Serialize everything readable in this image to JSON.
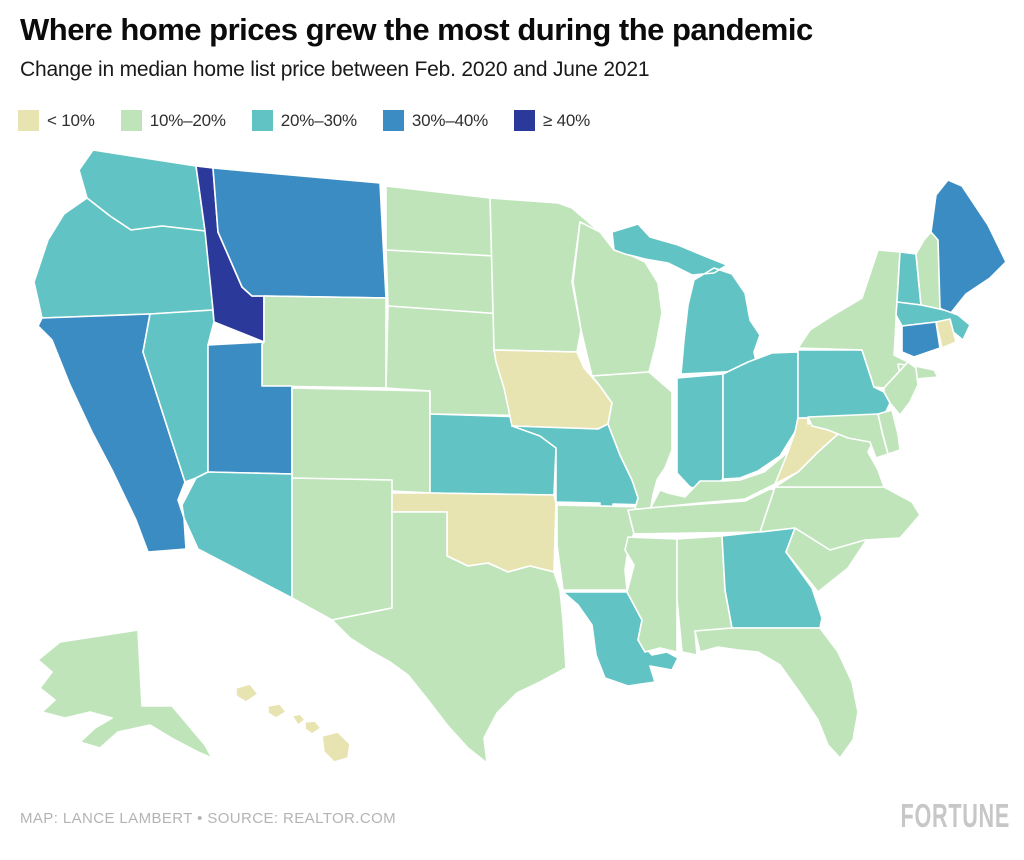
{
  "header": {
    "title": "Where home prices grew the most during the pandemic",
    "subtitle": "Change in median home list price between Feb. 2020 and June 2021"
  },
  "legend": {
    "items": [
      {
        "label": "< 10%",
        "key": "lt10"
      },
      {
        "label": "10%–20%",
        "key": "p10_20"
      },
      {
        "label": "20%–30%",
        "key": "p20_30"
      },
      {
        "label": "30%–40%",
        "key": "p30_40"
      },
      {
        "label": "≥ 40%",
        "key": "gte40"
      }
    ]
  },
  "map": {
    "type": "choropleth",
    "metric": "Change in median home list price, Feb. 2020 to June 2021",
    "palette": {
      "lt10": "#e8e4b1",
      "p10_20": "#bfe4ba",
      "p20_30": "#61c3c3",
      "p30_40": "#3a8cc3",
      "gte40": "#2b3a9a"
    },
    "border_color": "#ffffff",
    "states": [
      {
        "id": "WA",
        "name": "Washington",
        "category": "p20_30"
      },
      {
        "id": "OR",
        "name": "Oregon",
        "category": "p20_30"
      },
      {
        "id": "CA",
        "name": "California",
        "category": "p30_40"
      },
      {
        "id": "NV",
        "name": "Nevada",
        "category": "p20_30"
      },
      {
        "id": "ID",
        "name": "Idaho",
        "category": "gte40"
      },
      {
        "id": "MT",
        "name": "Montana",
        "category": "p30_40"
      },
      {
        "id": "WY",
        "name": "Wyoming",
        "category": "p10_20"
      },
      {
        "id": "UT",
        "name": "Utah",
        "category": "p30_40"
      },
      {
        "id": "CO",
        "name": "Colorado",
        "category": "p10_20"
      },
      {
        "id": "AZ",
        "name": "Arizona",
        "category": "p20_30"
      },
      {
        "id": "NM",
        "name": "New Mexico",
        "category": "p10_20"
      },
      {
        "id": "ND",
        "name": "North Dakota",
        "category": "p10_20"
      },
      {
        "id": "SD",
        "name": "South Dakota",
        "category": "p10_20"
      },
      {
        "id": "NE",
        "name": "Nebraska",
        "category": "p10_20"
      },
      {
        "id": "KS",
        "name": "Kansas",
        "category": "p20_30"
      },
      {
        "id": "OK",
        "name": "Oklahoma",
        "category": "lt10"
      },
      {
        "id": "TX",
        "name": "Texas",
        "category": "p10_20"
      },
      {
        "id": "MN",
        "name": "Minnesota",
        "category": "p10_20"
      },
      {
        "id": "IA",
        "name": "Iowa",
        "category": "lt10"
      },
      {
        "id": "MO",
        "name": "Missouri",
        "category": "p20_30"
      },
      {
        "id": "AR",
        "name": "Arkansas",
        "category": "p10_20"
      },
      {
        "id": "LA",
        "name": "Louisiana",
        "category": "p20_30"
      },
      {
        "id": "WI",
        "name": "Wisconsin",
        "category": "p10_20"
      },
      {
        "id": "IL",
        "name": "Illinois",
        "category": "p10_20"
      },
      {
        "id": "MI",
        "name": "Michigan",
        "category": "p20_30"
      },
      {
        "id": "IN",
        "name": "Indiana",
        "category": "p20_30"
      },
      {
        "id": "OH",
        "name": "Ohio",
        "category": "p20_30"
      },
      {
        "id": "KY",
        "name": "Kentucky",
        "category": "p10_20"
      },
      {
        "id": "TN",
        "name": "Tennessee",
        "category": "p10_20"
      },
      {
        "id": "MS",
        "name": "Mississippi",
        "category": "p10_20"
      },
      {
        "id": "AL",
        "name": "Alabama",
        "category": "p10_20"
      },
      {
        "id": "GA",
        "name": "Georgia",
        "category": "p20_30"
      },
      {
        "id": "SC",
        "name": "South Carolina",
        "category": "p10_20"
      },
      {
        "id": "NC",
        "name": "North Carolina",
        "category": "p10_20"
      },
      {
        "id": "VA",
        "name": "Virginia",
        "category": "p10_20"
      },
      {
        "id": "WV",
        "name": "West Virginia",
        "category": "lt10"
      },
      {
        "id": "FL",
        "name": "Florida",
        "category": "p10_20"
      },
      {
        "id": "PA",
        "name": "Pennsylvania",
        "category": "p20_30"
      },
      {
        "id": "NY",
        "name": "New York",
        "category": "p10_20"
      },
      {
        "id": "NJ",
        "name": "New Jersey",
        "category": "p10_20"
      },
      {
        "id": "VT",
        "name": "Vermont",
        "category": "p20_30"
      },
      {
        "id": "NH",
        "name": "New Hampshire",
        "category": "p10_20"
      },
      {
        "id": "ME",
        "name": "Maine",
        "category": "p30_40"
      },
      {
        "id": "MA",
        "name": "Massachusetts",
        "category": "p20_30"
      },
      {
        "id": "CT",
        "name": "Connecticut",
        "category": "p30_40"
      },
      {
        "id": "RI",
        "name": "Rhode Island",
        "category": "lt10"
      },
      {
        "id": "DE",
        "name": "Delaware",
        "category": "p10_20"
      },
      {
        "id": "MD",
        "name": "Maryland",
        "category": "p10_20"
      },
      {
        "id": "AK",
        "name": "Alaska",
        "category": "p10_20"
      },
      {
        "id": "HI",
        "name": "Hawaii",
        "category": "lt10"
      }
    ]
  },
  "footer": {
    "credit": "MAP: LANCE LAMBERT • SOURCE: REALTOR.COM",
    "logo": "FORTUNE"
  }
}
